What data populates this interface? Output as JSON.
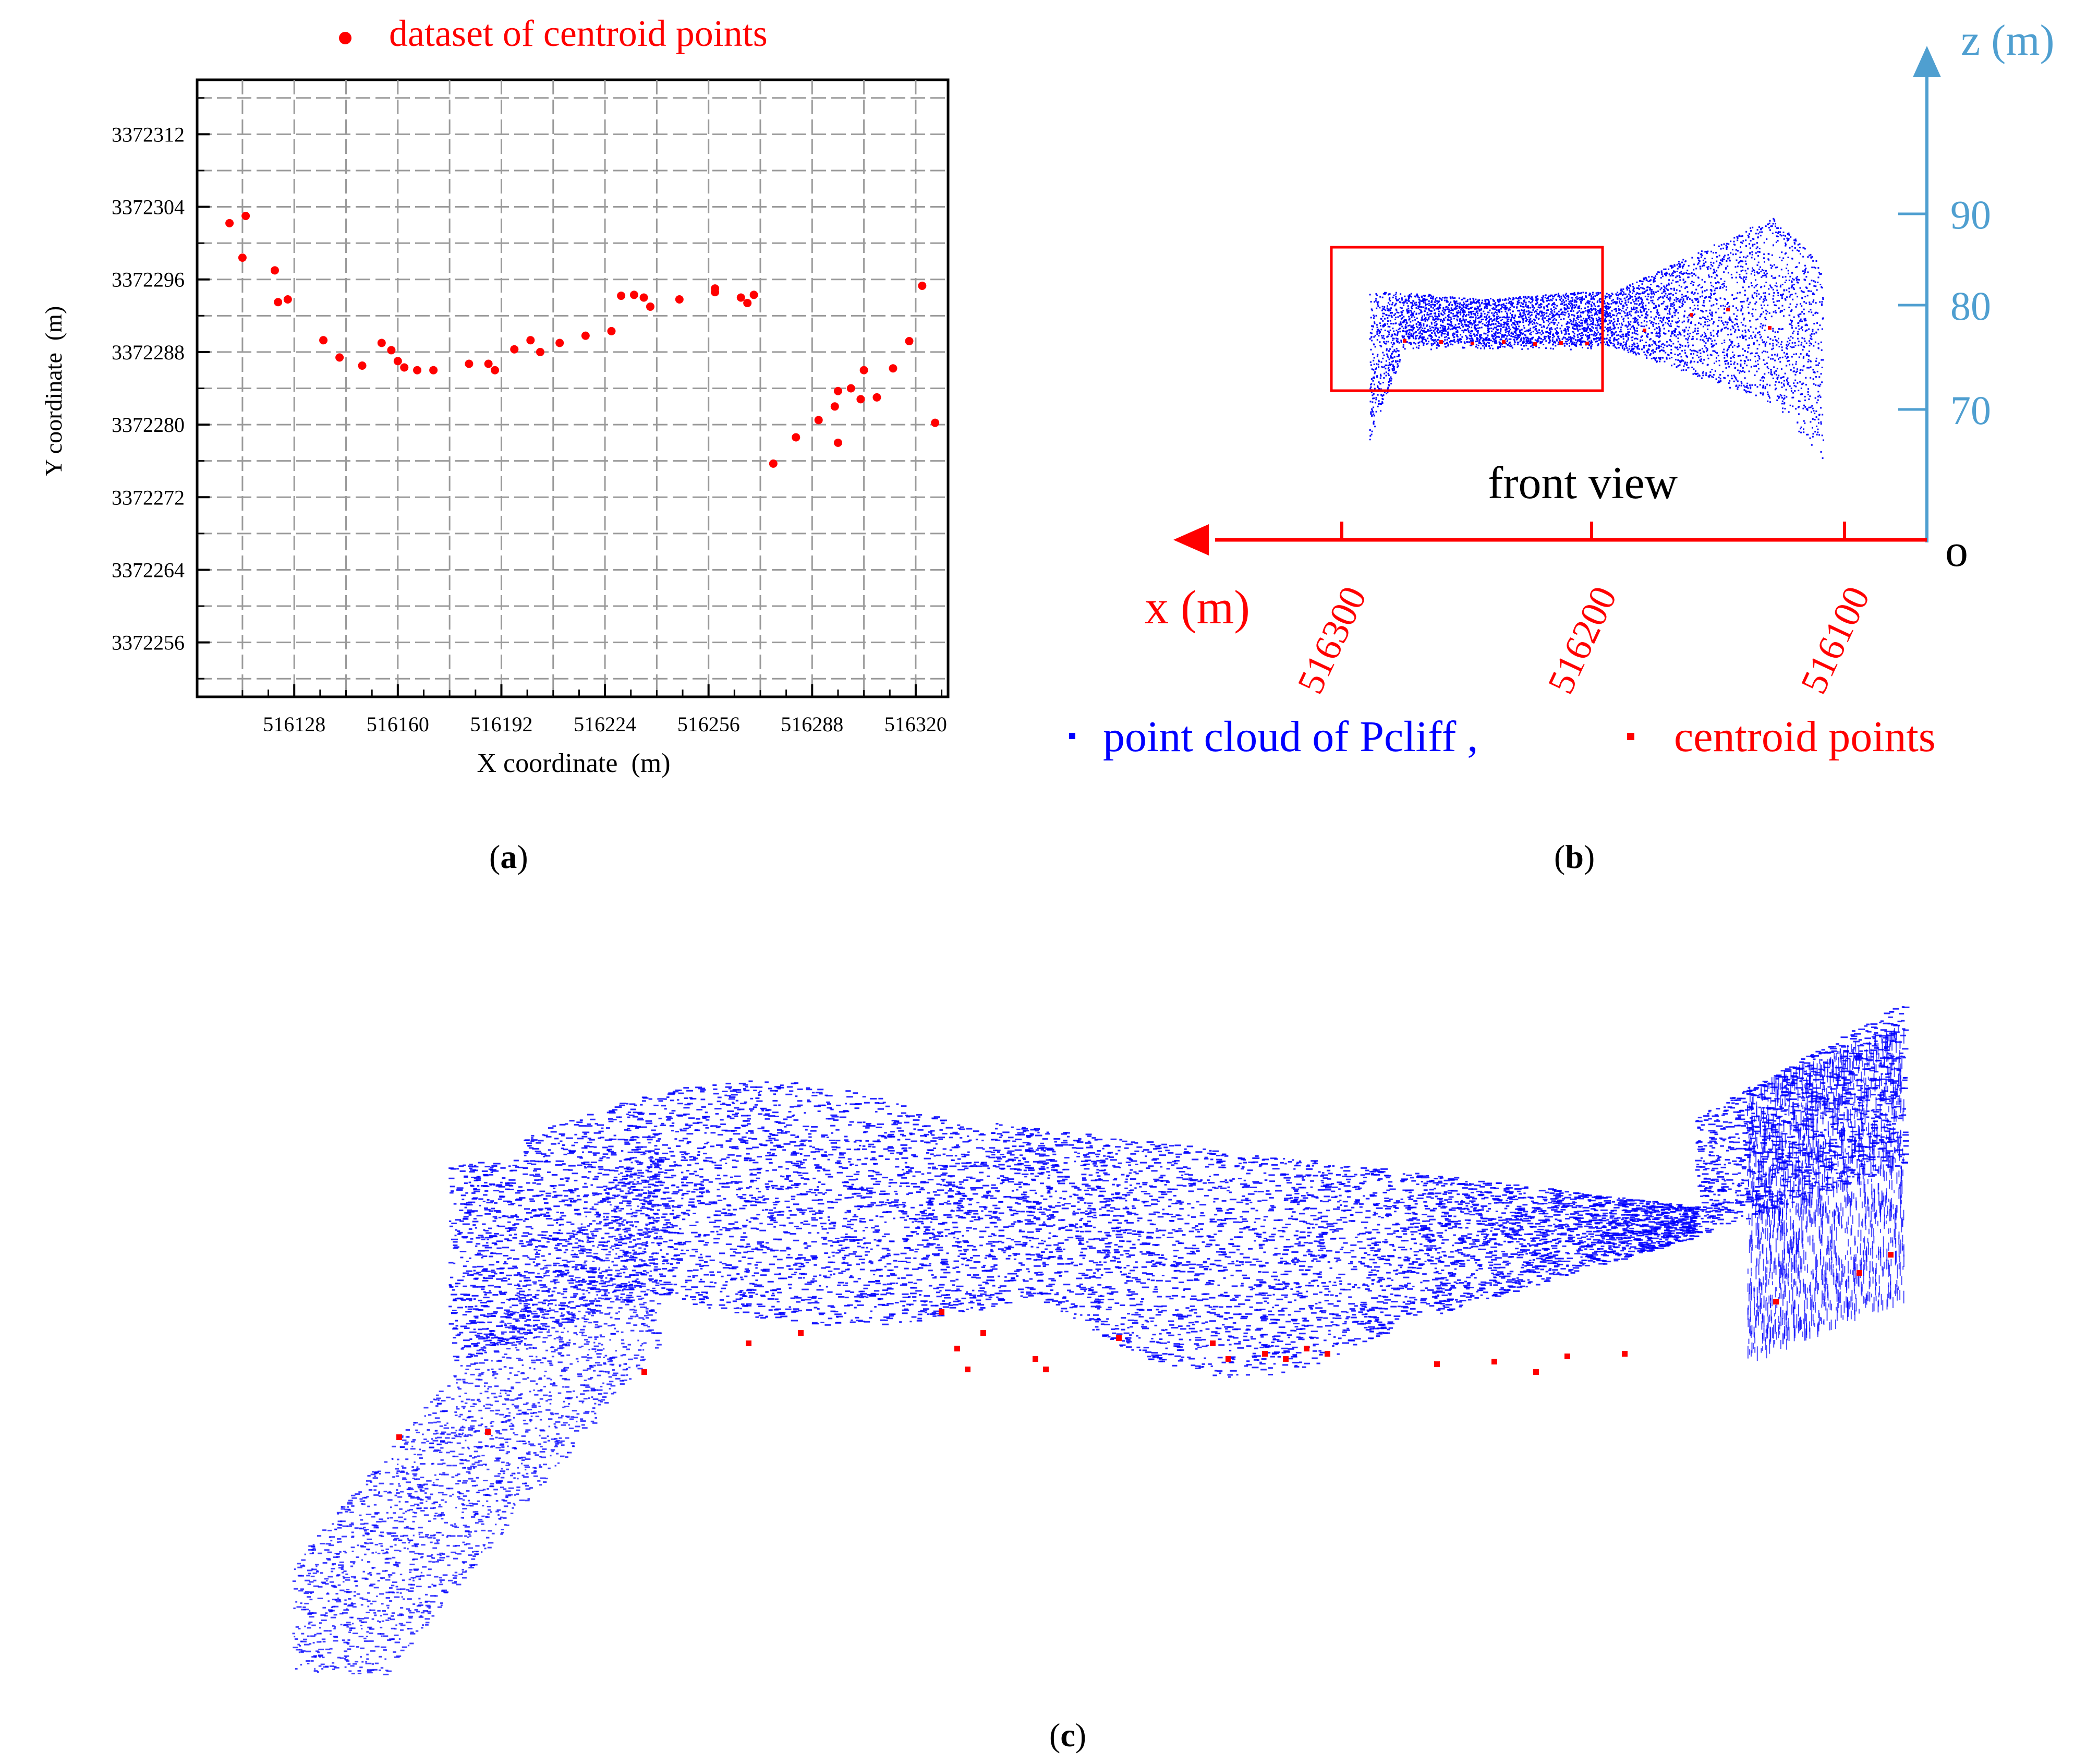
{
  "panels": {
    "a": {
      "caption_open": "(",
      "caption_letter": "a",
      "caption_close": ")"
    },
    "b": {
      "caption_open": "(",
      "caption_letter": "b",
      "caption_close": ")"
    },
    "c": {
      "caption_open": "(",
      "caption_letter": "c",
      "caption_close": ")"
    }
  },
  "chart_data": [
    {
      "type": "scatter",
      "panel": "a",
      "legend": "dataset of centroid points",
      "legend_position": "top",
      "xlabel": "X coordinate  (m)",
      "ylabel": "Y coordinate  (m)",
      "xlim": [
        516098,
        516330
      ],
      "ylim": [
        3372250,
        3372318
      ],
      "grid": true,
      "x_ticks": [
        516128,
        516160,
        516192,
        516224,
        516256,
        516288,
        516320
      ],
      "x_tick_labels": [
        "516128",
        "516160",
        "516192",
        "516224",
        "516256",
        "516288",
        "516320"
      ],
      "y_ticks": [
        3372256,
        3372264,
        3372272,
        3372280,
        3372288,
        3372296,
        3372304,
        3372312
      ],
      "y_tick_labels": [
        "3372256",
        "3372264",
        "3372272",
        "3372280",
        "3372288",
        "3372296",
        "3372304",
        "3372312"
      ],
      "colors": {
        "points": "#ff0000",
        "grid": "#9a9a9a"
      },
      "points": [
        [
          516108,
          3372302.2
        ],
        [
          516113,
          3372303.0
        ],
        [
          516112,
          3372298.4
        ],
        [
          516122,
          3372297.0
        ],
        [
          516123,
          3372293.5
        ],
        [
          516126,
          3372293.8
        ],
        [
          516137,
          3372289.3
        ],
        [
          516149,
          3372286.5
        ],
        [
          516155,
          3372289.0
        ],
        [
          516158,
          3372288.2
        ],
        [
          516160,
          3372287.0
        ],
        [
          516162,
          3372286.3
        ],
        [
          516166,
          3372286.0
        ],
        [
          516171,
          3372286.0
        ],
        [
          516182,
          3372286.7
        ],
        [
          516188,
          3372286.7
        ],
        [
          516190,
          3372286.0
        ],
        [
          516196,
          3372288.3
        ],
        [
          516201,
          3372289.3
        ],
        [
          516204,
          3372288.0
        ],
        [
          516210,
          3372289.0
        ],
        [
          516218,
          3372289.8
        ],
        [
          516226,
          3372290.3
        ],
        [
          516229,
          3372294.2
        ],
        [
          516233,
          3372294.3
        ],
        [
          516236,
          3372294.0
        ],
        [
          516238,
          3372293.0
        ],
        [
          516247,
          3372293.8
        ],
        [
          516258,
          3372294.6
        ],
        [
          516258,
          3372295.0
        ],
        [
          516266,
          3372294.0
        ],
        [
          516268,
          3372293.4
        ],
        [
          516270,
          3372294.3
        ],
        [
          516276,
          3372275.7
        ],
        [
          516283,
          3372278.6
        ],
        [
          516290,
          3372280.5
        ],
        [
          516295,
          3372282.0
        ],
        [
          516296,
          3372283.7
        ],
        [
          516303,
          3372282.8
        ],
        [
          516304,
          3372286.0
        ],
        [
          516308,
          3372283.0
        ],
        [
          516313,
          3372286.2
        ],
        [
          516318,
          3372289.2
        ],
        [
          516322,
          3372295.3
        ],
        [
          516326,
          3372280.2
        ],
        [
          516296,
          3372278.0
        ],
        [
          516300,
          3372284.0
        ],
        [
          516142,
          3372287.4
        ]
      ]
    },
    {
      "type": "scatter",
      "panel": "b",
      "annotation": "front view",
      "xlabel": "x (m)",
      "zlabel": "z (m)",
      "origin_label": "o",
      "x_tick_labels": [
        "516300",
        "516200",
        "516100"
      ],
      "z_tick_labels": [
        "90",
        "80",
        "70"
      ],
      "legend": [
        "point cloud of Pcliff ,",
        "centroid points"
      ],
      "legend_position": "bottom",
      "colors": {
        "point_cloud": "#0000ff",
        "centroid": "#ff0000",
        "x_axis": "#ff0000",
        "z_axis": "#4f9fd0",
        "highlight_box": "#ff0000"
      }
    },
    {
      "type": "scatter",
      "panel": "c",
      "colors": {
        "point_cloud": "#0000ff",
        "centroid": "#ff0000"
      }
    }
  ]
}
